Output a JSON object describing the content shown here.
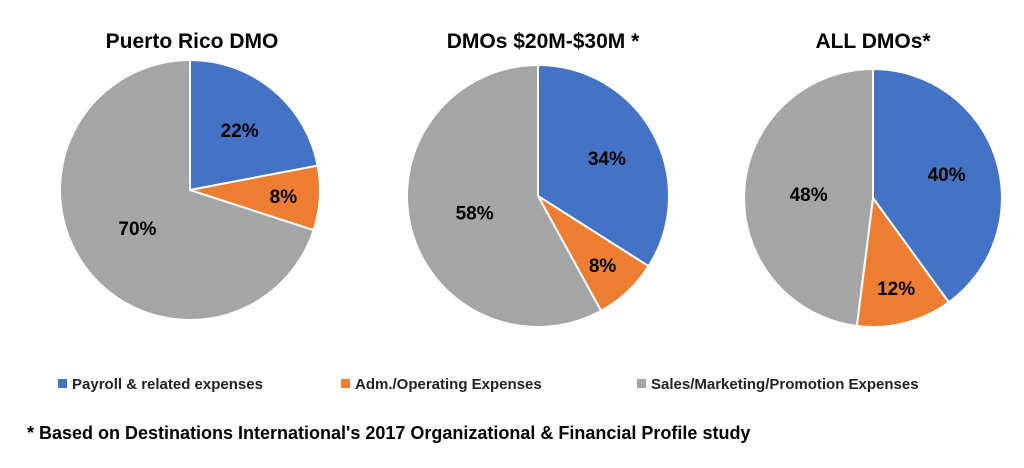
{
  "chart_data": [
    {
      "type": "pie",
      "title": "Puerto Rico DMO",
      "categories": [
        "Payroll & related expenses",
        "Adm./Operating Expenses",
        "Sales/Marketing/Promotion Expenses"
      ],
      "values": [
        22,
        8,
        70
      ],
      "labels": [
        "22%",
        "8%",
        "70%"
      ]
    },
    {
      "type": "pie",
      "title": "DMOs $20M-$30M *",
      "categories": [
        "Payroll & related expenses",
        "Adm./Operating Expenses",
        "Sales/Marketing/Promotion Expenses"
      ],
      "values": [
        34,
        8,
        58
      ],
      "labels": [
        "34%",
        "8%",
        "58%"
      ]
    },
    {
      "type": "pie",
      "title": "ALL DMOs*",
      "categories": [
        "Payroll & related expenses",
        "Adm./Operating Expenses",
        "Sales/Marketing/Promotion Expenses"
      ],
      "values": [
        40,
        12,
        48
      ],
      "labels": [
        "40%",
        "12%",
        "48%"
      ]
    }
  ],
  "legend": {
    "placement": "bottom",
    "items": [
      {
        "label": "Payroll & related expenses",
        "color": "#4472C4"
      },
      {
        "label": "Adm./Operating Expenses",
        "color": "#ED7D31"
      },
      {
        "label": "Sales/Marketing/Promotion Expenses",
        "color": "#A5A5A5"
      }
    ]
  },
  "colors": [
    "#4472C4",
    "#ED7D31",
    "#A5A5A5"
  ],
  "footnote": "* Based on Destinations International's 2017 Organizational & Financial Profile study"
}
